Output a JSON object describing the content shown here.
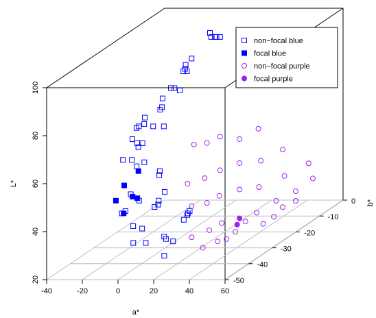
{
  "chart_data": {
    "type": "scatter3d",
    "xlabel": "a*",
    "ylabel": "b*",
    "zlabel": "L*",
    "xlim": [
      -40,
      60
    ],
    "ylim": [
      -50,
      0
    ],
    "zlim": [
      20,
      100
    ],
    "xticks": [
      -40,
      -20,
      0,
      20,
      40,
      60
    ],
    "yticks": [
      -50,
      -40,
      -30,
      -20,
      -10,
      0
    ],
    "zticks": [
      20,
      40,
      60,
      80,
      100
    ],
    "grid": true,
    "legend": "topright",
    "series": [
      {
        "name": "non−focal blue",
        "color": "#0000ff",
        "marker": "open-square",
        "x": [
          -8,
          -6,
          -4,
          -3,
          -1,
          -13,
          -15,
          -14,
          -15,
          -13,
          -18,
          -16,
          -13,
          -20,
          -19,
          -20,
          -26,
          -25,
          -20,
          -14,
          -28,
          -28,
          -29,
          -25,
          -22,
          -23,
          -29,
          -24,
          -20,
          -17,
          -7,
          -6,
          1,
          -1,
          0,
          -2,
          -18,
          -12,
          -17,
          -19,
          -10,
          -5,
          10,
          11,
          15,
          19,
          18,
          19,
          17,
          14,
          -6,
          1
        ],
        "y": [
          -5,
          -6,
          -6,
          -6,
          -6,
          -9,
          -10,
          -11,
          -11,
          -11,
          -14,
          -14,
          -14,
          -16,
          -17,
          -17,
          -19,
          -20,
          -20,
          -20,
          -20,
          -21,
          -22,
          -23,
          -23,
          -24,
          -26,
          -26,
          -27,
          -26,
          -27,
          -28,
          -31,
          -32,
          -33,
          -33,
          -31,
          -32,
          -34,
          -34,
          -36,
          -36,
          -38,
          -38,
          -38,
          -34,
          -34,
          -35,
          -35,
          -41,
          -39,
          -39
        ],
        "z": [
          93,
          92,
          92,
          92,
          92,
          85,
          83,
          82,
          81,
          81,
          76,
          76,
          75,
          73,
          70,
          69,
          67,
          65,
          64,
          64,
          64,
          64,
          60,
          59,
          59,
          58,
          54,
          54,
          52,
          53,
          50,
          49,
          44,
          41,
          40,
          39,
          43,
          41,
          38,
          37,
          33,
          32,
          30,
          29,
          28,
          38,
          37,
          37,
          35,
          24,
          28,
          28
        ]
      },
      {
        "name": "focal blue",
        "color": "#0000ff",
        "marker": "filled-square",
        "x": [
          -19,
          -23,
          -17,
          -25,
          -13,
          -18
        ],
        "y": [
          -27,
          -30,
          -31,
          -32,
          -32,
          -34
        ],
        "z": [
          50,
          46,
          42,
          41,
          42,
          37
        ]
      },
      {
        "name": "non−focal purple",
        "color": "#a020f0",
        "marker": "open-circle",
        "x": [
          43,
          36,
          32,
          34,
          39,
          46,
          43,
          39,
          36,
          50,
          34,
          31,
          47,
          51,
          42,
          39,
          37,
          48,
          34,
          45,
          48,
          46,
          42,
          45,
          32,
          37,
          43,
          41,
          32,
          33,
          36,
          37,
          38,
          34
        ],
        "y": [
          -23,
          -34,
          -42,
          -38,
          -28,
          -15,
          -22,
          -28,
          -34,
          -7,
          -39,
          -44,
          -15,
          -6,
          -22,
          -28,
          -35,
          -11,
          -38,
          -17,
          -11,
          -15,
          -23,
          -18,
          -43,
          -34,
          -21,
          -27,
          -43,
          -39,
          -35,
          -32,
          -29,
          -37
        ],
        "z": [
          65,
          69,
          71,
          69,
          64,
          51,
          51,
          54,
          55,
          40,
          55,
          56,
          40,
          33,
          40,
          43,
          45,
          31,
          44,
          31,
          27,
          27,
          30,
          25,
          46,
          33,
          24,
          29,
          33,
          26,
          26,
          25,
          26,
          32
        ]
      },
      {
        "name": "focal purple",
        "color": "#a020f0",
        "marker": "filled-circle",
        "x": [
          39,
          39
        ],
        "y": [
          -28,
          -29
        ],
        "z": [
          31,
          29
        ]
      }
    ]
  }
}
